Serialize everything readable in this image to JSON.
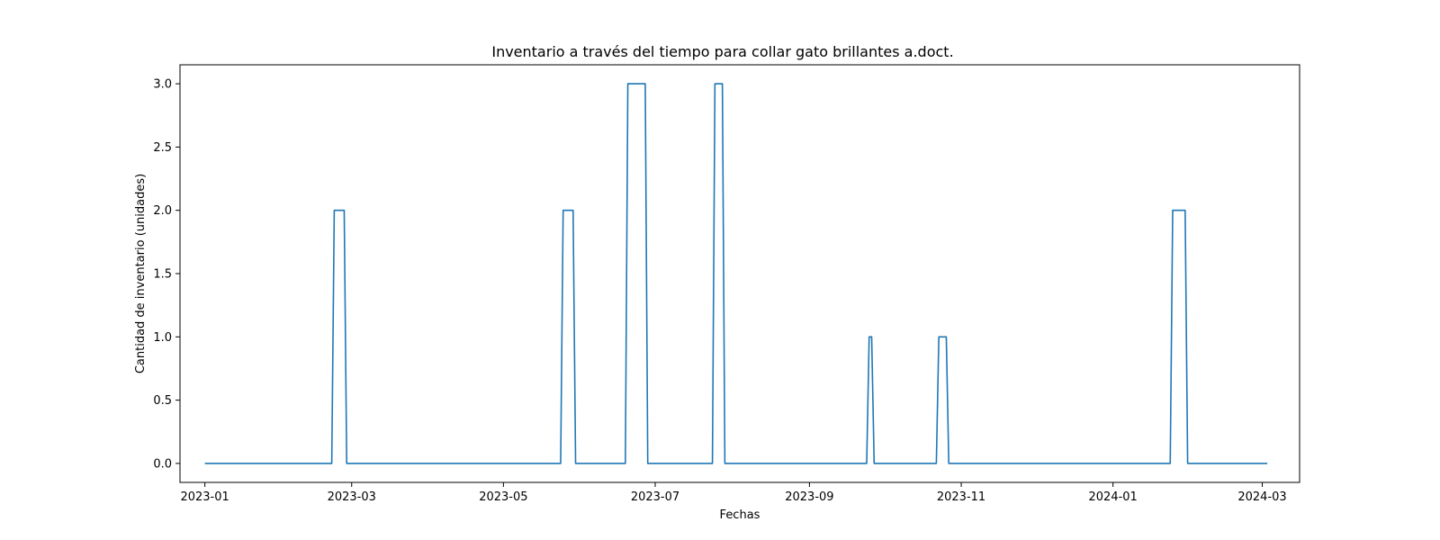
{
  "chart_data": {
    "type": "line",
    "title": "Inventario a través del tiempo para collar gato brillantes a.doct.",
    "xlabel": "Fechas",
    "ylabel": "Cantidad de inventario (unidades)",
    "xlim": [
      "2022-12-22",
      "2024-03-16"
    ],
    "ylim": [
      -0.15,
      3.15
    ],
    "grid": false,
    "legend": false,
    "x_ticks": [
      {
        "label": "2023-01",
        "date": "2023-01-01"
      },
      {
        "label": "2023-03",
        "date": "2023-03-01"
      },
      {
        "label": "2023-05",
        "date": "2023-05-01"
      },
      {
        "label": "2023-07",
        "date": "2023-07-01"
      },
      {
        "label": "2023-09",
        "date": "2023-09-01"
      },
      {
        "label": "2023-11",
        "date": "2023-11-01"
      },
      {
        "label": "2024-01",
        "date": "2024-01-01"
      },
      {
        "label": "2024-03",
        "date": "2024-03-01"
      }
    ],
    "y_ticks": [
      {
        "label": "0.0",
        "value": 0
      },
      {
        "label": "0.5",
        "value": 0.5
      },
      {
        "label": "1.0",
        "value": 1
      },
      {
        "label": "1.5",
        "value": 1.5
      },
      {
        "label": "2.0",
        "value": 2
      },
      {
        "label": "2.5",
        "value": 2.5
      },
      {
        "label": "3.0",
        "value": 3
      }
    ],
    "series": [
      {
        "color": "#1f77b4",
        "points": [
          {
            "x": "2023-01-01",
            "y": 0
          },
          {
            "x": "2023-02-21",
            "y": 0
          },
          {
            "x": "2023-02-22",
            "y": 2
          },
          {
            "x": "2023-02-26",
            "y": 2
          },
          {
            "x": "2023-02-27",
            "y": 0
          },
          {
            "x": "2023-05-24",
            "y": 0
          },
          {
            "x": "2023-05-25",
            "y": 2
          },
          {
            "x": "2023-05-29",
            "y": 2
          },
          {
            "x": "2023-05-30",
            "y": 0
          },
          {
            "x": "2023-06-19",
            "y": 0
          },
          {
            "x": "2023-06-20",
            "y": 3
          },
          {
            "x": "2023-06-27",
            "y": 3
          },
          {
            "x": "2023-06-28",
            "y": 0
          },
          {
            "x": "2023-07-24",
            "y": 0
          },
          {
            "x": "2023-07-25",
            "y": 3
          },
          {
            "x": "2023-07-28",
            "y": 3
          },
          {
            "x": "2023-07-29",
            "y": 0
          },
          {
            "x": "2023-09-24",
            "y": 0
          },
          {
            "x": "2023-09-25",
            "y": 1
          },
          {
            "x": "2023-09-26",
            "y": 1
          },
          {
            "x": "2023-09-27",
            "y": 0
          },
          {
            "x": "2023-10-22",
            "y": 0
          },
          {
            "x": "2023-10-23",
            "y": 1
          },
          {
            "x": "2023-10-26",
            "y": 1
          },
          {
            "x": "2023-10-27",
            "y": 0
          },
          {
            "x": "2024-01-24",
            "y": 0
          },
          {
            "x": "2024-01-25",
            "y": 2
          },
          {
            "x": "2024-01-30",
            "y": 2
          },
          {
            "x": "2024-01-31",
            "y": 0
          },
          {
            "x": "2024-03-03",
            "y": 0
          }
        ]
      }
    ]
  }
}
